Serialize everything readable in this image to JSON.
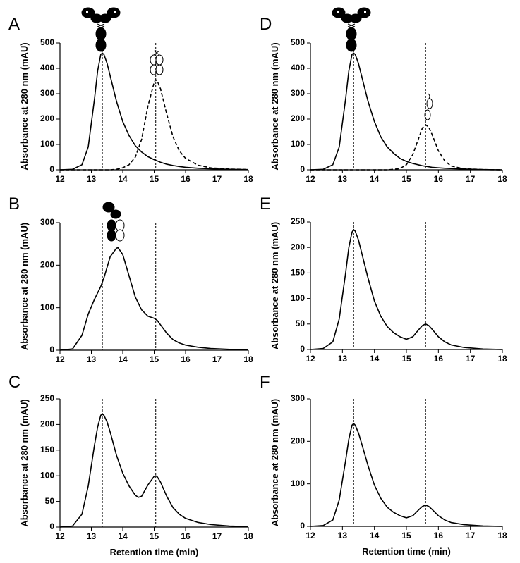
{
  "chart_data": [
    {
      "type": "line",
      "label": "A",
      "y_label": "Absorbance at 280 nm (mAU)",
      "x": [
        12,
        12.4,
        12.7,
        12.9,
        13.1,
        13.2,
        13.3,
        13.35,
        13.4,
        13.5,
        13.6,
        13.8,
        14,
        14.2,
        14.4,
        14.6,
        14.8,
        15,
        15.05,
        15.1,
        15.2,
        15.4,
        15.6,
        15.8,
        16,
        16.4,
        16.8,
        17.4,
        18
      ],
      "series": [
        {
          "color": "#000000",
          "style": "solid",
          "values": [
            0,
            2,
            20,
            90,
            280,
            390,
            455,
            460,
            455,
            420,
            370,
            270,
            190,
            135,
            95,
            70,
            52,
            40,
            37,
            35,
            30,
            22,
            17,
            13,
            10,
            6,
            4,
            2,
            1
          ]
        },
        {
          "color": "#000000",
          "style": "dashed",
          "values": [
            0,
            0,
            0,
            0,
            0,
            0,
            0,
            0,
            0,
            0,
            0,
            2,
            8,
            20,
            50,
            120,
            250,
            345,
            355,
            350,
            320,
            220,
            130,
            75,
            45,
            18,
            8,
            3,
            1
          ]
        }
      ],
      "xlim": [
        12,
        18
      ],
      "xticks": [
        12,
        13,
        14,
        15,
        16,
        17,
        18
      ],
      "ylim": [
        0,
        500
      ],
      "yticks": [
        0,
        100,
        200,
        300,
        400,
        500
      ],
      "reference_lines": [
        13.35,
        15.05
      ]
    },
    {
      "type": "line",
      "label": "B",
      "y_label": "Absorbance at 280 nm (mAU)",
      "x": [
        12,
        12.4,
        12.7,
        12.9,
        13.1,
        13.2,
        13.3,
        13.4,
        13.5,
        13.6,
        13.8,
        13.85,
        14,
        14.2,
        14.4,
        14.6,
        14.8,
        15,
        15.1,
        15.2,
        15.4,
        15.6,
        15.8,
        16,
        16.4,
        16.8,
        17.4,
        18
      ],
      "series": [
        {
          "color": "#000000",
          "style": "solid",
          "values": [
            0,
            3,
            35,
            85,
            120,
            135,
            150,
            170,
            195,
            220,
            240,
            241,
            225,
            175,
            125,
            95,
            80,
            75,
            70,
            60,
            40,
            25,
            17,
            12,
            7,
            4,
            2,
            1
          ]
        }
      ],
      "xlim": [
        12,
        18
      ],
      "xticks": [
        12,
        13,
        14,
        15,
        16,
        17,
        18
      ],
      "ylim": [
        0,
        300
      ],
      "yticks": [
        0,
        100,
        200,
        300
      ],
      "reference_lines": [
        13.35,
        15.05
      ]
    },
    {
      "type": "line",
      "label": "C",
      "y_label": "Absorbance at 280 nm (mAU)",
      "x_label": "Retention time (min)",
      "x": [
        12,
        12.4,
        12.7,
        12.9,
        13.1,
        13.2,
        13.3,
        13.35,
        13.4,
        13.5,
        13.6,
        13.8,
        14,
        14.2,
        14.4,
        14.5,
        14.6,
        14.8,
        15,
        15.05,
        15.1,
        15.2,
        15.4,
        15.6,
        15.8,
        16,
        16.4,
        16.8,
        17.4,
        18
      ],
      "series": [
        {
          "color": "#000000",
          "style": "solid",
          "values": [
            0,
            2,
            25,
            80,
            160,
            195,
            218,
            220,
            218,
            205,
            185,
            140,
            105,
            80,
            62,
            58,
            60,
            82,
            99,
            100,
            98,
            88,
            60,
            38,
            25,
            17,
            9,
            5,
            2,
            1
          ]
        }
      ],
      "xlim": [
        12,
        18
      ],
      "xticks": [
        12,
        13,
        14,
        15,
        16,
        17,
        18
      ],
      "ylim": [
        0,
        250
      ],
      "yticks": [
        0,
        50,
        100,
        150,
        200,
        250
      ],
      "reference_lines": [
        13.35,
        15.05
      ]
    },
    {
      "type": "line",
      "label": "D",
      "y_label": "Absorbance at 280 nm (mAU)",
      "x": [
        12,
        12.4,
        12.7,
        12.9,
        13.1,
        13.2,
        13.3,
        13.35,
        13.4,
        13.5,
        13.6,
        13.8,
        14,
        14.2,
        14.4,
        14.6,
        14.8,
        15,
        15.2,
        15.4,
        15.5,
        15.6,
        15.7,
        15.8,
        16,
        16.2,
        16.4,
        16.8,
        17.4,
        18
      ],
      "series": [
        {
          "color": "#000000",
          "style": "solid",
          "values": [
            0,
            2,
            20,
            90,
            280,
            390,
            455,
            460,
            455,
            420,
            370,
            270,
            190,
            130,
            90,
            65,
            45,
            33,
            25,
            19,
            16,
            14,
            12,
            10,
            8,
            6,
            5,
            3,
            1,
            0
          ]
        },
        {
          "color": "#000000",
          "style": "dashed",
          "values": [
            0,
            0,
            0,
            0,
            0,
            0,
            0,
            0,
            0,
            0,
            0,
            0,
            0,
            0,
            0,
            2,
            5,
            20,
            60,
            130,
            165,
            178,
            168,
            140,
            75,
            35,
            15,
            4,
            1,
            0
          ]
        }
      ],
      "xlim": [
        12,
        18
      ],
      "xticks": [
        12,
        13,
        14,
        15,
        16,
        17,
        18
      ],
      "ylim": [
        0,
        500
      ],
      "yticks": [
        0,
        100,
        200,
        300,
        400,
        500
      ],
      "reference_lines": [
        13.35,
        15.6
      ]
    },
    {
      "type": "line",
      "label": "E",
      "y_label": "Absorbance at 280 nm (mAU)",
      "x": [
        12,
        12.4,
        12.7,
        12.9,
        13.1,
        13.2,
        13.3,
        13.35,
        13.4,
        13.5,
        13.6,
        13.8,
        14,
        14.2,
        14.4,
        14.6,
        14.8,
        15,
        15.2,
        15.4,
        15.5,
        15.6,
        15.7,
        15.8,
        16,
        16.2,
        16.4,
        16.8,
        17.4,
        18
      ],
      "series": [
        {
          "color": "#000000",
          "style": "solid",
          "values": [
            0,
            2,
            15,
            60,
            150,
            200,
            230,
            235,
            232,
            215,
            190,
            140,
            95,
            65,
            45,
            33,
            25,
            20,
            25,
            40,
            47,
            50,
            47,
            40,
            25,
            15,
            9,
            4,
            1,
            0
          ]
        }
      ],
      "xlim": [
        12,
        18
      ],
      "xticks": [
        12,
        13,
        14,
        15,
        16,
        17,
        18
      ],
      "ylim": [
        0,
        250
      ],
      "yticks": [
        0,
        50,
        100,
        150,
        200,
        250
      ],
      "reference_lines": [
        13.35,
        15.6
      ]
    },
    {
      "type": "line",
      "label": "F",
      "y_label": "Absorbance at 280 nm (mAU)",
      "x_label": "Retention time (min)",
      "x": [
        12,
        12.4,
        12.7,
        12.9,
        13.1,
        13.2,
        13.3,
        13.35,
        13.4,
        13.5,
        13.6,
        13.8,
        14,
        14.2,
        14.4,
        14.6,
        14.8,
        15,
        15.2,
        15.4,
        15.5,
        15.6,
        15.7,
        15.8,
        16,
        16.2,
        16.4,
        16.8,
        17.4,
        18
      ],
      "series": [
        {
          "color": "#000000",
          "style": "solid",
          "values": [
            0,
            2,
            15,
            62,
            155,
            205,
            238,
            242,
            238,
            220,
            195,
            143,
            97,
            66,
            45,
            33,
            25,
            20,
            25,
            40,
            47,
            50,
            47,
            40,
            25,
            15,
            9,
            4,
            1,
            0
          ]
        }
      ],
      "xlim": [
        12,
        18
      ],
      "xticks": [
        12,
        13,
        14,
        15,
        16,
        17,
        18
      ],
      "ylim": [
        0,
        300
      ],
      "yticks": [
        0,
        100,
        200,
        300
      ],
      "reference_lines": [
        13.35,
        15.6
      ]
    }
  ]
}
